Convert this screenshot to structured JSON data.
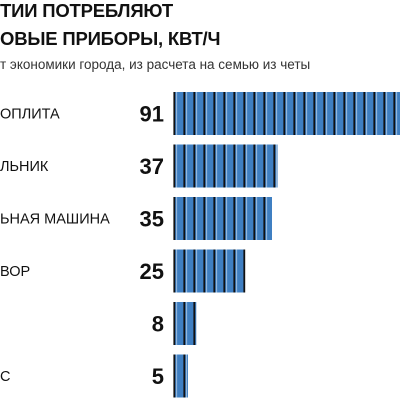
{
  "title": {
    "line1": "ТИИ ПОТРЕБЛЯЮТ",
    "line2": "ОВЫЕ ПРИБОРЫ, КВТ/Ч"
  },
  "subtitle": "т экономики города, из расчета на семью из четы",
  "colors": {
    "bar": "#3f7fc2",
    "segment_line": "#111111",
    "text": "#111111"
  },
  "chart_data": {
    "type": "bar",
    "orientation": "horizontal",
    "title": "ТИИ ПОТРЕБЛЯЮТ ОВЫЕ ПРИБОРЫ, КВТ/Ч",
    "subtitle": "т экономики города, из расчета на семью из четы",
    "categories": [
      "ОПЛИТА",
      "ЛЬНИК",
      "ЬНАЯ МАШИНА",
      "ВОР",
      "",
      "С"
    ],
    "values": [
      91,
      37,
      35,
      25,
      8,
      5
    ],
    "data_labels": [
      "91",
      "37",
      "35",
      "25",
      "8",
      "5"
    ],
    "xlim": [
      0,
      91
    ],
    "grid": false,
    "legend": "none"
  }
}
